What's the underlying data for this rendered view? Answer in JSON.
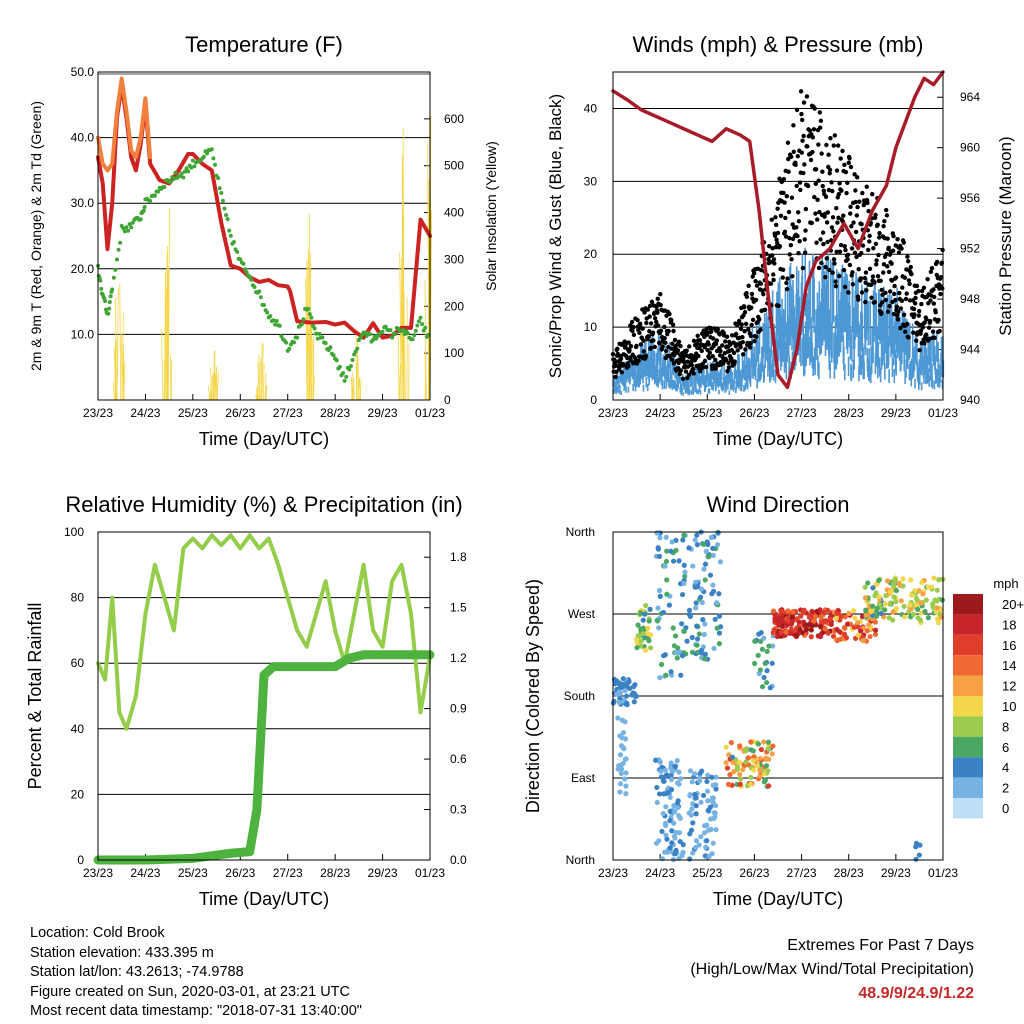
{
  "colors": {
    "red": "#cc2222",
    "orange": "#f0803c",
    "green": "#3fa535",
    "yellow": "#f5d442",
    "maroon": "#a81c2a",
    "blue": "#4d98d5",
    "black": "#000000",
    "rh_light": "#94cd4a",
    "rain_green": "#4db23e",
    "extremes_text": "#c62828"
  },
  "chart_data": [
    {
      "type": "line",
      "title": "Temperature (F)",
      "xlabel": "Time (Day/UTC)",
      "ylabel": "2m & 9m T (Red, Orange) & 2m Td (Green)",
      "y2label": "Solar Insolation (Yellow)",
      "xticks": [
        "23/23",
        "24/23",
        "25/23",
        "26/23",
        "27/23",
        "28/23",
        "29/23",
        "01/23"
      ],
      "yticks": [
        "10.0",
        "20.0",
        "30.0",
        "40.0",
        "50.0"
      ],
      "y2ticks": [
        "0",
        "100",
        "200",
        "300",
        "400",
        "500",
        "600"
      ],
      "ylim": [
        0,
        50
      ],
      "y2lim": [
        0,
        700
      ],
      "grid": true,
      "series": [
        {
          "key": "temp2m",
          "color": "red",
          "x": [
            0,
            0.1,
            0.2,
            0.3,
            0.4,
            0.5,
            0.6,
            0.7,
            0.8,
            0.9,
            1.0,
            1.1,
            1.3,
            1.5,
            1.7,
            1.9,
            2.0,
            2.2,
            2.4,
            2.6,
            2.8,
            3.0,
            3.2,
            3.4,
            3.6,
            3.8,
            4.0,
            4.05,
            4.2,
            4.5,
            4.8,
            5.0,
            5.2,
            5.4,
            5.6,
            5.8,
            6.0,
            6.2,
            6.4,
            6.6,
            6.8,
            7.0
          ],
          "y": [
            37,
            33,
            23,
            30,
            43,
            48,
            43,
            37,
            35,
            39,
            45,
            36,
            33.5,
            33,
            35,
            37.5,
            37.5,
            36,
            35,
            27,
            20.5,
            20,
            18.7,
            18,
            18.3,
            17.5,
            17.3,
            16.6,
            12,
            11.8,
            11.9,
            11.5,
            11.8,
            10.5,
            9.5,
            11.7,
            9.5,
            9.8,
            11,
            11,
            27.5,
            25
          ]
        },
        {
          "key": "temp9m",
          "color": "orange",
          "x": [
            0,
            0.1,
            0.2,
            0.3,
            0.4,
            0.5,
            0.6,
            0.7,
            0.8,
            0.9,
            1.0,
            1.1
          ],
          "y": [
            40,
            36,
            35,
            36,
            44,
            49,
            44,
            38,
            37,
            40,
            46,
            37
          ]
        },
        {
          "key": "dewpoint",
          "color": "green",
          "x": [
            0,
            0.1,
            0.2,
            0.3,
            0.5,
            0.7,
            0.9,
            1.0,
            1.2,
            1.4,
            1.6,
            1.8,
            2.0,
            2.2,
            2.4,
            2.6,
            2.8,
            3.0,
            3.2,
            3.4,
            3.6,
            3.8,
            4.0,
            4.2,
            4.4,
            4.6,
            4.8,
            5.0,
            5.2,
            5.4,
            5.6,
            5.8,
            6.0,
            6.2,
            6.4,
            6.6,
            6.8,
            7.0
          ],
          "y": [
            20,
            16,
            13,
            17,
            26,
            26.5,
            28,
            30,
            31.5,
            33,
            34,
            34.5,
            36,
            37,
            38,
            31,
            25,
            21,
            19,
            16,
            13,
            11.5,
            8,
            10,
            14,
            10,
            8.5,
            6.5,
            3,
            7,
            10.5,
            9,
            11,
            10,
            11,
            9,
            12,
            9
          ]
        },
        {
          "key": "solar",
          "color": "yellow",
          "axis": "y2",
          "peaks": [
            [
              0.45,
              450
            ],
            [
              1.45,
              570
            ],
            [
              2.45,
              130
            ],
            [
              3.45,
              160
            ],
            [
              4.45,
              450
            ],
            [
              5.45,
              170
            ],
            [
              6.45,
              700
            ],
            [
              7.0,
              700
            ]
          ]
        }
      ]
    },
    {
      "type": "scatter",
      "title": "Winds (mph) & Pressure (mb)",
      "xlabel": "Time (Day/UTC)",
      "ylabel": "Sonic/Prop Wind & Gust (Blue, Black)",
      "y2label": "Station Pressure (Maroon)",
      "xticks": [
        "23/23",
        "24/23",
        "25/23",
        "26/23",
        "27/23",
        "28/23",
        "29/23",
        "01/23"
      ],
      "yticks": [
        "0",
        "10",
        "20",
        "30",
        "40"
      ],
      "y2ticks": [
        "940",
        "944",
        "948",
        "952",
        "956",
        "960",
        "964"
      ],
      "ylim": [
        0,
        45
      ],
      "y2lim": [
        940,
        966
      ],
      "grid": true,
      "series": [
        {
          "key": "wind",
          "color": "blue",
          "envelope": [
            [
              0,
              3
            ],
            [
              0.5,
              6
            ],
            [
              1.0,
              9
            ],
            [
              1.5,
              3
            ],
            [
              2.0,
              5
            ],
            [
              2.5,
              4
            ],
            [
              3.0,
              9
            ],
            [
              3.5,
              14
            ],
            [
              4.0,
              18
            ],
            [
              4.5,
              17
            ],
            [
              5.0,
              15
            ],
            [
              5.5,
              14
            ],
            [
              6.0,
              13
            ],
            [
              6.5,
              7
            ],
            [
              7.0,
              9
            ]
          ]
        },
        {
          "key": "gust",
          "color": "black",
          "envelope": [
            [
              0,
              5
            ],
            [
              0.5,
              9
            ],
            [
              1.0,
              12
            ],
            [
              1.5,
              5
            ],
            [
              2.0,
              8
            ],
            [
              2.5,
              7
            ],
            [
              3.0,
              14
            ],
            [
              3.5,
              23
            ],
            [
              4.0,
              33
            ],
            [
              4.5,
              30
            ],
            [
              5.0,
              26
            ],
            [
              5.5,
              22
            ],
            [
              6.0,
              19
            ],
            [
              6.5,
              12
            ],
            [
              7.0,
              16
            ]
          ]
        },
        {
          "key": "pressure",
          "color": "maroon",
          "axis": "y2",
          "x": [
            0,
            0.3,
            0.6,
            0.9,
            1.2,
            1.5,
            1.8,
            2.1,
            2.4,
            2.7,
            2.9,
            3.1,
            3.3,
            3.5,
            3.7,
            3.9,
            4.1,
            4.3,
            4.6,
            4.9,
            5.2,
            5.5,
            5.8,
            6.0,
            6.2,
            6.4,
            6.6,
            6.8,
            7.0
          ],
          "y": [
            964.5,
            963.8,
            963,
            962.5,
            962,
            961.5,
            961,
            960.5,
            961.5,
            961,
            960.5,
            955,
            948,
            942,
            941,
            944,
            949,
            951,
            952,
            954,
            952,
            955,
            957,
            960,
            962,
            964,
            965.5,
            965,
            966
          ]
        }
      ]
    },
    {
      "type": "line",
      "title": "Relative Humidity (%) & Precipitation (in)",
      "xlabel": "Time (Day/UTC)",
      "ylabel": "Percent & Total Rainfall",
      "xticks": [
        "23/23",
        "24/23",
        "25/23",
        "26/23",
        "27/23",
        "28/23",
        "29/23",
        "01/23"
      ],
      "yticks": [
        "0",
        "20",
        "40",
        "60",
        "80",
        "100"
      ],
      "y2ticks": [
        "0.0",
        "0.3",
        "0.6",
        "0.9",
        "1.2",
        "1.5",
        "1.8"
      ],
      "ylim": [
        0,
        100
      ],
      "y2lim": [
        0,
        1.95
      ],
      "grid": true,
      "series": [
        {
          "key": "rh",
          "color": "rh_light",
          "x": [
            0,
            0.15,
            0.3,
            0.45,
            0.6,
            0.8,
            1.0,
            1.2,
            1.4,
            1.6,
            1.8,
            2.0,
            2.2,
            2.4,
            2.6,
            2.8,
            3.0,
            3.2,
            3.4,
            3.6,
            3.8,
            4.0,
            4.2,
            4.4,
            4.6,
            4.8,
            5.0,
            5.2,
            5.4,
            5.6,
            5.8,
            6.0,
            6.2,
            6.4,
            6.6,
            6.8,
            7.0
          ],
          "y": [
            60,
            55,
            80,
            45,
            40,
            50,
            75,
            90,
            80,
            70,
            95,
            98,
            95,
            99,
            96,
            99,
            95,
            99,
            95,
            98,
            90,
            80,
            70,
            65,
            75,
            85,
            70,
            60,
            75,
            90,
            70,
            65,
            85,
            90,
            75,
            45,
            62
          ]
        },
        {
          "key": "rain",
          "color": "rain_green",
          "axis": "y2",
          "x": [
            0,
            1,
            2,
            2.8,
            3.2,
            3.35,
            3.5,
            3.7,
            4.0,
            4.5,
            5.0,
            5.3,
            5.6,
            6.0,
            6.5,
            7.0
          ],
          "y": [
            0,
            0,
            0.01,
            0.04,
            0.05,
            0.3,
            1.1,
            1.15,
            1.15,
            1.15,
            1.15,
            1.2,
            1.22,
            1.22,
            1.22,
            1.22
          ]
        }
      ]
    },
    {
      "type": "scatter",
      "title": "Wind Direction",
      "xlabel": "Time (Day/UTC)",
      "ylabel": "Direction (Colored By Speed)",
      "xticks": [
        "23/23",
        "24/23",
        "25/23",
        "26/23",
        "27/23",
        "28/23",
        "29/23",
        "01/23"
      ],
      "ytick_labels": [
        "North",
        "West",
        "South",
        "East",
        "North"
      ],
      "legend_title": "mph",
      "legend_labels": [
        "20+",
        "18",
        "16",
        "14",
        "12",
        "10",
        "8",
        "6",
        "4",
        "2",
        "0"
      ],
      "legend_colors": [
        "#9c1a1c",
        "#c6262b",
        "#df3f2a",
        "#ef6a32",
        "#f7a144",
        "#f4d64a",
        "#9bcc4e",
        "#4aa863",
        "#3b82c4",
        "#76b3e3",
        "#bde0f6"
      ],
      "legend_placement": "right"
    }
  ],
  "info": {
    "location": "Location: Cold Brook",
    "elevation": "Station elevation: 433.395 m",
    "latlon": "Station lat/lon: 43.2613; -74.9788",
    "created": "Figure created on Sun, 2020-03-01, at 23:21 UTC",
    "recent": "Most recent data timestamp: \"2018-07-31 13:40:00\""
  },
  "extremes": {
    "line1": "Extremes For Past 7 Days",
    "line2": "(High/Low/Max Wind/Total Precipitation)",
    "values": "48.9/9/24.9/1.22"
  }
}
